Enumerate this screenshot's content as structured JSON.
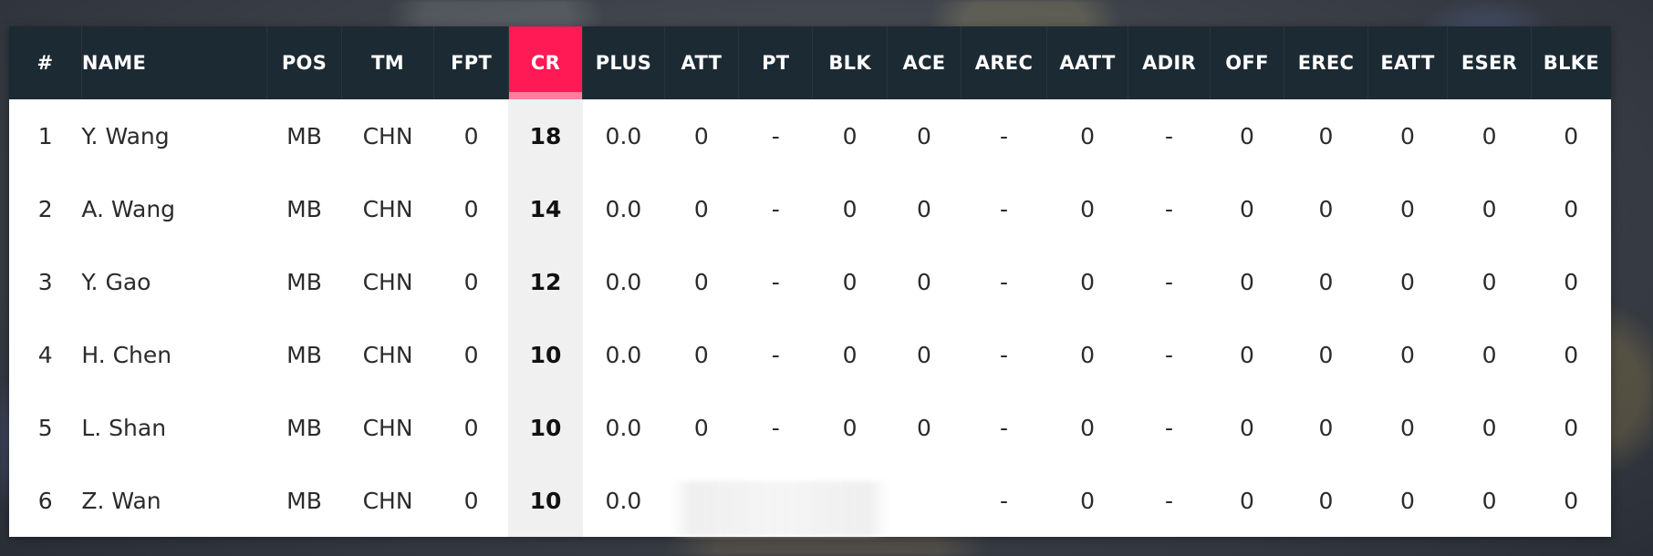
{
  "colors": {
    "header_bg": "#1c2a33",
    "cr_accent": "#ff1955",
    "cr_cell_bg": "#f0f0f0"
  },
  "columns": [
    {
      "key": "rank",
      "label": "#"
    },
    {
      "key": "name",
      "label": "NAME"
    },
    {
      "key": "pos",
      "label": "POS"
    },
    {
      "key": "tm",
      "label": "TM"
    },
    {
      "key": "fpt",
      "label": "FPT"
    },
    {
      "key": "cr",
      "label": "CR"
    },
    {
      "key": "plus",
      "label": "PLUS"
    },
    {
      "key": "att",
      "label": "ATT"
    },
    {
      "key": "pt",
      "label": "PT"
    },
    {
      "key": "blk",
      "label": "BLK"
    },
    {
      "key": "ace",
      "label": "ACE"
    },
    {
      "key": "arec",
      "label": "AREC"
    },
    {
      "key": "aatt",
      "label": "AATT"
    },
    {
      "key": "adir",
      "label": "ADIR"
    },
    {
      "key": "off",
      "label": "OFF"
    },
    {
      "key": "erec",
      "label": "EREC"
    },
    {
      "key": "eatt",
      "label": "EATT"
    },
    {
      "key": "eser",
      "label": "ESER"
    },
    {
      "key": "blke",
      "label": "BLKE"
    }
  ],
  "rows": [
    {
      "rank": "1",
      "name": "Y. Wang",
      "pos": "MB",
      "tm": "CHN",
      "fpt": "0",
      "cr": "18",
      "plus": "0.0",
      "att": "0",
      "pt": "-",
      "blk": "0",
      "ace": "0",
      "arec": "-",
      "aatt": "0",
      "adir": "-",
      "off": "0",
      "erec": "0",
      "eatt": "0",
      "eser": "0",
      "blke": "0"
    },
    {
      "rank": "2",
      "name": "A. Wang",
      "pos": "MB",
      "tm": "CHN",
      "fpt": "0",
      "cr": "14",
      "plus": "0.0",
      "att": "0",
      "pt": "-",
      "blk": "0",
      "ace": "0",
      "arec": "-",
      "aatt": "0",
      "adir": "-",
      "off": "0",
      "erec": "0",
      "eatt": "0",
      "eser": "0",
      "blke": "0"
    },
    {
      "rank": "3",
      "name": "Y. Gao",
      "pos": "MB",
      "tm": "CHN",
      "fpt": "0",
      "cr": "12",
      "plus": "0.0",
      "att": "0",
      "pt": "-",
      "blk": "0",
      "ace": "0",
      "arec": "-",
      "aatt": "0",
      "adir": "-",
      "off": "0",
      "erec": "0",
      "eatt": "0",
      "eser": "0",
      "blke": "0"
    },
    {
      "rank": "4",
      "name": "H. Chen",
      "pos": "MB",
      "tm": "CHN",
      "fpt": "0",
      "cr": "10",
      "plus": "0.0",
      "att": "0",
      "pt": "-",
      "blk": "0",
      "ace": "0",
      "arec": "-",
      "aatt": "0",
      "adir": "-",
      "off": "0",
      "erec": "0",
      "eatt": "0",
      "eser": "0",
      "blke": "0"
    },
    {
      "rank": "5",
      "name": "L. Shan",
      "pos": "MB",
      "tm": "CHN",
      "fpt": "0",
      "cr": "10",
      "plus": "0.0",
      "att": "0",
      "pt": "-",
      "blk": "0",
      "ace": "0",
      "arec": "-",
      "aatt": "0",
      "adir": "-",
      "off": "0",
      "erec": "0",
      "eatt": "0",
      "eser": "0",
      "blke": "0"
    },
    {
      "rank": "6",
      "name": "Z. Wan",
      "pos": "MB",
      "tm": "CHN",
      "fpt": "0",
      "cr": "10",
      "plus": "0.0",
      "att": "",
      "pt": "",
      "blk": "",
      "ace": "",
      "arec": "-",
      "aatt": "0",
      "adir": "-",
      "off": "0",
      "erec": "0",
      "eatt": "0",
      "eser": "0",
      "blke": "0"
    }
  ]
}
